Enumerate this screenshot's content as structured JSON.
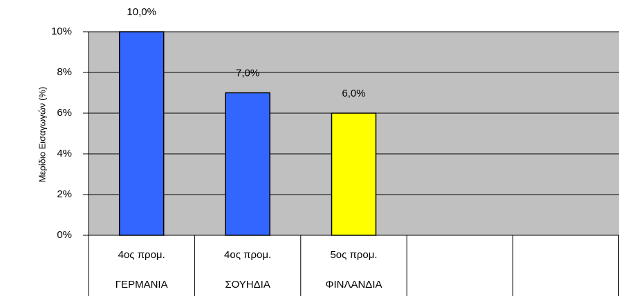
{
  "chart_data": {
    "type": "bar",
    "ylabel": "Μερίδιο Εισαγωγών (%)",
    "categories": [
      "ΓΕΡΜΑΝΙΑ",
      "ΣΟΥΗΔΙΑ",
      "ΦΙΝΛΑΝΔΙΑ",
      null,
      null
    ],
    "subcategories": [
      "4ος προμ.",
      "4ος προμ.",
      "5ος προμ.",
      null,
      null
    ],
    "values": [
      10,
      7,
      6,
      null,
      null
    ],
    "value_labels": [
      "10,0%",
      "7,0%",
      "6,0%",
      null,
      null
    ],
    "colors": [
      "#3366ff",
      "#3366ff",
      "#ffff00",
      null,
      null
    ],
    "ylim": [
      0,
      10
    ],
    "yticks": [
      {
        "value": 0,
        "label": "0%"
      },
      {
        "value": 2,
        "label": "2%"
      },
      {
        "value": 4,
        "label": "4%"
      },
      {
        "value": 6,
        "label": "6%"
      },
      {
        "value": 8,
        "label": "8%"
      },
      {
        "value": 10,
        "label": "10%"
      }
    ],
    "grid": true,
    "plot_background": "#c0c0c0"
  }
}
